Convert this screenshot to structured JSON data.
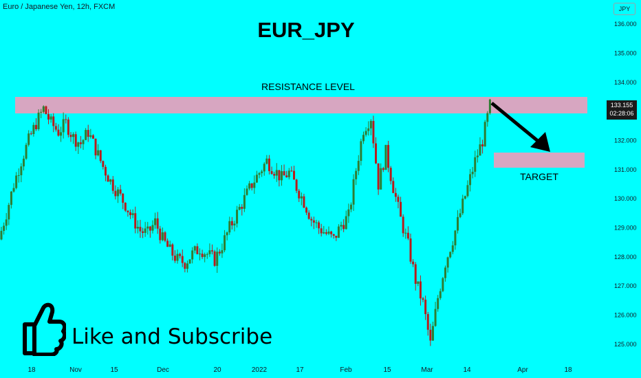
{
  "header": {
    "symbol": "Euro / Japanese Yen, 12h, FXCM",
    "currency": "JPY"
  },
  "colors": {
    "background": "#00ffff",
    "bull": "#2e7d32",
    "bear": "#b71c1c",
    "zone": "#d7a6c1",
    "arrow": "#000000"
  },
  "chart_data": {
    "type": "candlestick",
    "title": "EUR_JPY",
    "y_axis": {
      "side": "right",
      "min": 124.5,
      "max": 136.5,
      "ticks": [
        "136.000",
        "135.000",
        "134.000",
        "133.000",
        "132.000",
        "131.000",
        "130.000",
        "129.000",
        "128.000",
        "127.000",
        "126.000",
        "125.000"
      ]
    },
    "x_axis": {
      "ticks": [
        "18",
        "Nov",
        "15",
        "Dec",
        "20",
        "2022",
        "17",
        "Feb",
        "15",
        "Mar",
        "14",
        "Apr",
        "18"
      ]
    },
    "last_price": "133.155",
    "countdown": "02:28:06",
    "close_path": [
      128.6,
      129.5,
      130.5,
      131.3,
      132.0,
      132.6,
      133.1,
      132.6,
      132.3,
      132.6,
      132.1,
      131.9,
      132.3,
      131.7,
      131.1,
      130.6,
      130.2,
      129.8,
      129.3,
      128.9,
      128.8,
      129.2,
      128.6,
      128.2,
      127.9,
      127.8,
      128.1,
      128.3,
      128.1,
      127.9,
      128.4,
      129.0,
      129.5,
      130.0,
      130.5,
      130.9,
      131.3,
      131.0,
      130.7,
      130.9,
      130.4,
      129.9,
      129.3,
      129.0,
      128.8,
      128.6,
      129.1,
      129.4,
      131.0,
      132.4,
      132.8,
      130.5,
      131.6,
      130.4,
      129.3,
      128.4,
      127.2,
      126.4,
      125.0,
      126.6,
      127.8,
      128.6,
      129.5,
      130.4,
      131.3,
      132.0,
      133.2
    ],
    "annotations": {
      "resistance_label": "RESISTANCE LEVEL",
      "resistance_band": [
        132.9,
        133.5
      ],
      "target_label": "TARGET",
      "target_band": [
        131.0,
        131.5
      ]
    }
  },
  "cta": {
    "text": "Like and Subscribe"
  }
}
